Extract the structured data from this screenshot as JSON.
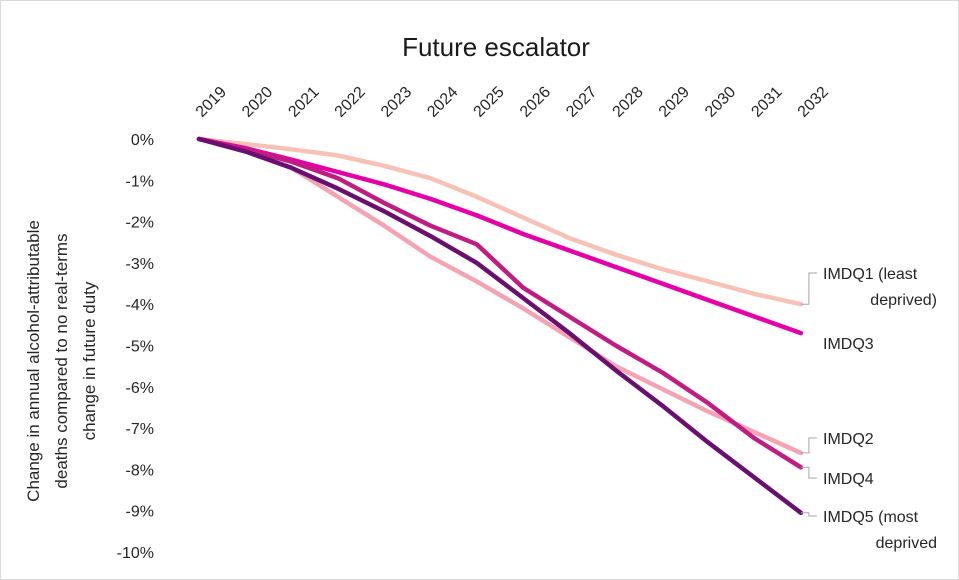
{
  "chart_data": {
    "type": "line",
    "title": "Future escalator",
    "xlabel": "",
    "ylabel_lines": [
      "Change in annual alcohol-attributable",
      "deaths compared to no real-terms",
      "change in future duty"
    ],
    "x": [
      "2019",
      "2020",
      "2021",
      "2022",
      "2023",
      "2024",
      "2025",
      "2026",
      "2027",
      "2028",
      "2029",
      "2030",
      "2031",
      "2032"
    ],
    "y_ticks": [
      "0%",
      "-1%",
      "-2%",
      "-3%",
      "-4%",
      "-5%",
      "-6%",
      "-7%",
      "-8%",
      "-9%",
      "-10%"
    ],
    "ylim": [
      -10,
      0
    ],
    "legend": "none",
    "series": [
      {
        "name_lines": [
          "IMDQ1 (least",
          "deprived)"
        ],
        "color": "#f7c1b5",
        "values": [
          0,
          -0.12,
          -0.25,
          -0.4,
          -0.65,
          -0.95,
          -1.4,
          -1.9,
          -2.4,
          -2.8,
          -3.15,
          -3.45,
          -3.75,
          -4.0
        ]
      },
      {
        "name_lines": [
          "IMDQ2"
        ],
        "color": "#f4a3b4",
        "values": [
          0,
          -0.3,
          -0.7,
          -1.4,
          -2.1,
          -2.85,
          -3.45,
          -4.1,
          -4.8,
          -5.5,
          -6.05,
          -6.6,
          -7.1,
          -7.6
        ]
      },
      {
        "name_lines": [
          "IMDQ3"
        ],
        "color": "#e600a8",
        "values": [
          0,
          -0.22,
          -0.5,
          -0.8,
          -1.1,
          -1.45,
          -1.85,
          -2.3,
          -2.7,
          -3.1,
          -3.5,
          -3.9,
          -4.3,
          -4.7
        ]
      },
      {
        "name_lines": [
          "IMDQ4"
        ],
        "color": "#c01c82",
        "values": [
          0,
          -0.25,
          -0.55,
          -0.95,
          -1.55,
          -2.1,
          -2.55,
          -3.6,
          -4.3,
          -5.0,
          -5.65,
          -6.4,
          -7.25,
          -7.95
        ]
      },
      {
        "name_lines": [
          "IMDQ5 (most",
          "deprived"
        ],
        "color": "#6a0f70",
        "values": [
          0,
          -0.3,
          -0.7,
          -1.2,
          -1.75,
          -2.35,
          -3.0,
          -3.85,
          -4.7,
          -5.6,
          -6.45,
          -7.35,
          -8.2,
          -9.05
        ]
      }
    ]
  }
}
